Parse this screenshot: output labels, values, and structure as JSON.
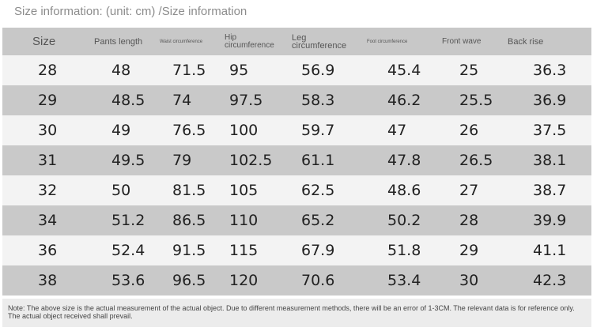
{
  "title": "Size information: (unit: cm) /Size information",
  "headers": [
    "Size",
    "Pants length",
    "Waist circumference",
    "Hip circumference",
    "Leg circumference",
    "Foot circumference",
    "Front wave",
    "Back rise"
  ],
  "rows": [
    [
      "28",
      "48",
      "71.5",
      "95",
      "56.9",
      "45.4",
      "25",
      "36.3"
    ],
    [
      "29",
      "48.5",
      "74",
      "97.5",
      "58.3",
      "46.2",
      "25.5",
      "36.9"
    ],
    [
      "30",
      "49",
      "76.5",
      "100",
      "59.7",
      "47",
      "26",
      "37.5"
    ],
    [
      "31",
      "49.5",
      "79",
      "102.5",
      "61.1",
      "47.8",
      "26.5",
      "38.1"
    ],
    [
      "32",
      "50",
      "81.5",
      "105",
      "62.5",
      "48.6",
      "27",
      "38.7"
    ],
    [
      "34",
      "51.2",
      "86.5",
      "110",
      "65.2",
      "50.2",
      "28",
      "39.9"
    ],
    [
      "36",
      "52.4",
      "91.5",
      "115",
      "67.9",
      "51.8",
      "29",
      "41.1"
    ],
    [
      "38",
      "53.6",
      "96.5",
      "120",
      "70.6",
      "53.4",
      "30",
      "42.3"
    ]
  ],
  "note": "Note: The above size is the actual measurement of the actual object. Due to different measurement methods, there will be an error of 1-3CM. The relevant data is for reference only. The actual object received shall prevail."
}
